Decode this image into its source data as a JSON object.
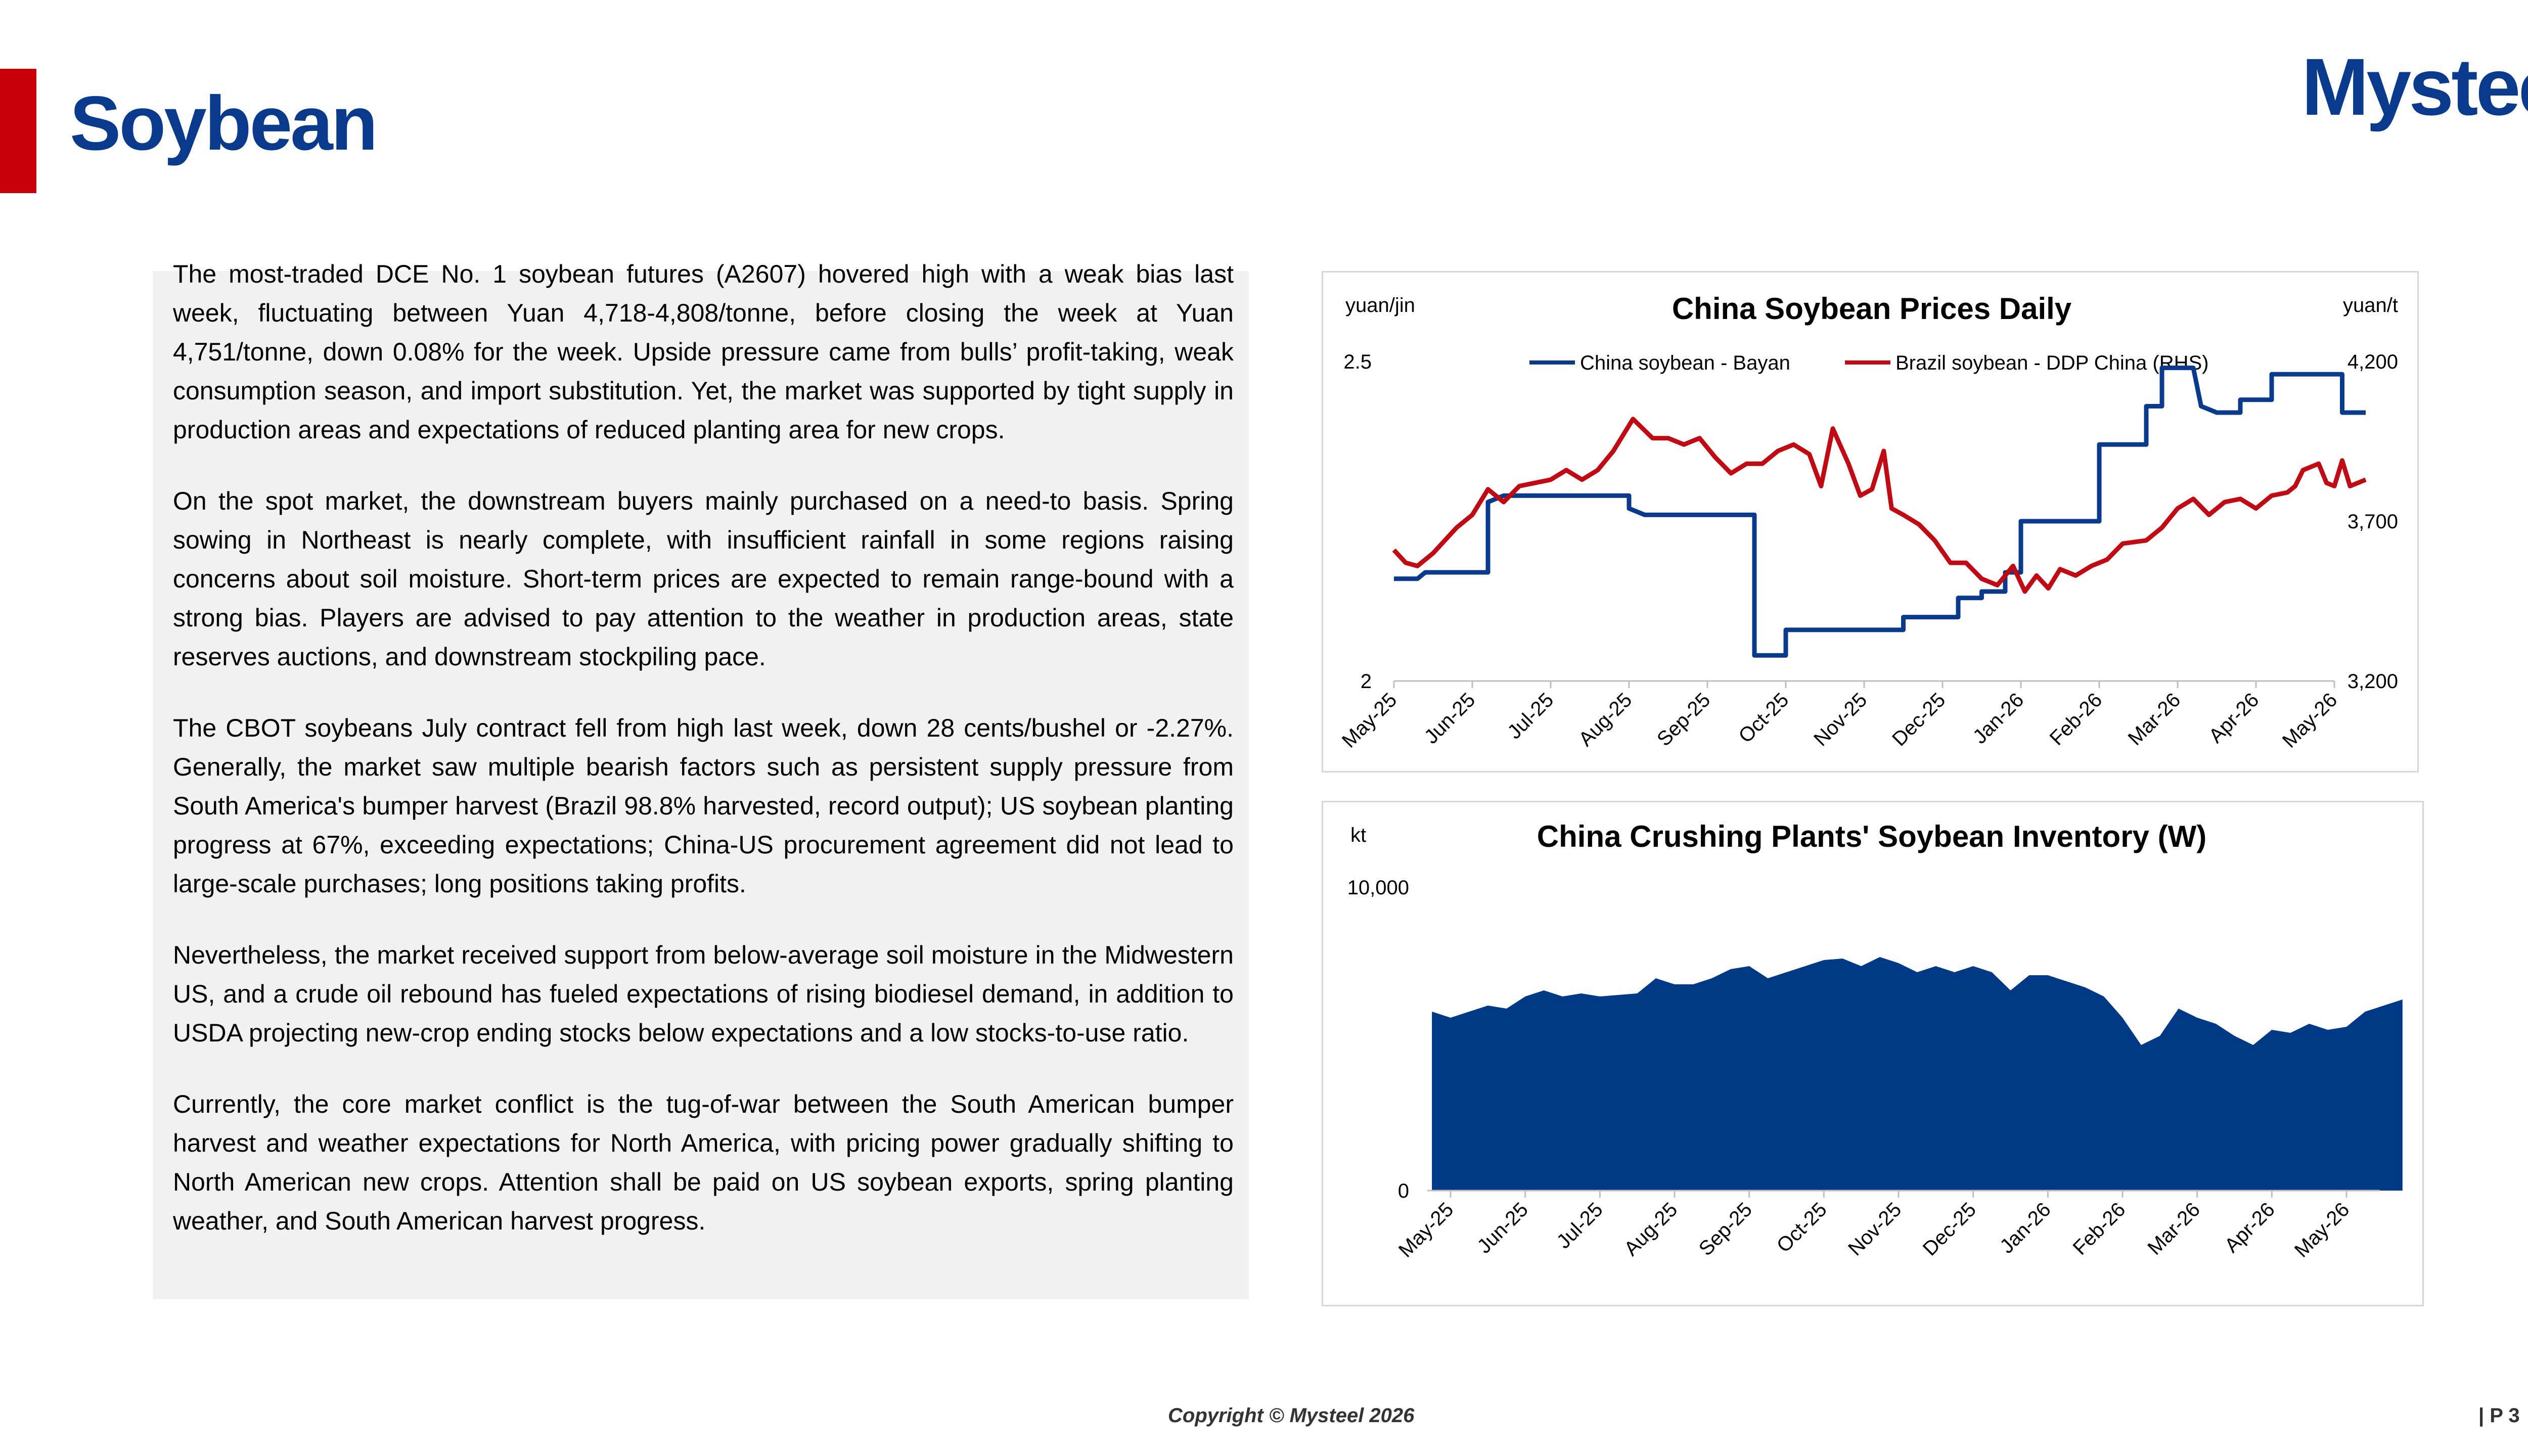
{
  "header": {
    "title": "Soybean",
    "logo": "Mysteel"
  },
  "colors": {
    "brand_blue": "#0a3a8c",
    "accent_red": "#c8000a",
    "panel_grey": "#f1f1f1",
    "area_fill": "#003a86",
    "line_blue": "#0a3a8c",
    "line_red": "#c00a14"
  },
  "text": {
    "paragraphs": [
      "The most-traded DCE No. 1 soybean futures (A2607) hovered high with a weak bias last week, fluctuating between Yuan 4,718-4,808/tonne, before closing the week at Yuan 4,751/tonne, down 0.08% for the week. Upside pressure came from bulls’ profit-taking, weak consumption season, and import substitution. Yet, the market was supported by tight supply in production areas and expectations of reduced planting area for new crops.",
      "On the spot market, the downstream buyers mainly purchased on a need-to basis. Spring sowing in Northeast is nearly complete, with insufficient rainfall in some regions raising concerns about soil moisture. Short-term prices are expected to remain range-bound with a strong bias. Players are advised to pay attention to the weather in production areas, state reserves auctions, and downstream stockpiling pace.",
      "The CBOT soybeans July contract fell from high last week, down 28 cents/bushel or -2.27%. Generally, the market saw multiple bearish factors such as persistent supply pressure from South America's bumper harvest (Brazil 98.8% harvested, record output); US soybean planting progress at 67%, exceeding expectations; China-US procurement agreement did not lead to large-scale purchases; long positions taking profits.",
      "Nevertheless, the market received support from below-average soil moisture in the Midwestern US, and a crude oil rebound has fueled expectations of rising biodiesel demand, in addition to USDA projecting new-crop ending stocks below expectations and a low stocks-to-use ratio.",
      "Currently, the core market conflict is the tug-of-war between the South American bumper harvest and weather expectations for North America, with pricing power gradually shifting to North American new crops. Attention shall be paid on US soybean exports, spring planting weather, and South American harvest progress."
    ]
  },
  "chart_data": [
    {
      "type": "line",
      "title": "China Soybean Prices Daily",
      "ylabel": "yuan/jin",
      "ylabel_right": "yuan/t",
      "ylim": [
        2,
        2.5
      ],
      "yticks": [
        "2.5",
        "2"
      ],
      "ylim_right": [
        3200,
        4200
      ],
      "yticks_right": [
        "4,200",
        "3,700",
        "3,200"
      ],
      "categories": [
        "May-25",
        "Jun-25",
        "Jul-25",
        "Aug-25",
        "Sep-25",
        "Oct-25",
        "Nov-25",
        "Dec-25",
        "Jan-26",
        "Feb-26",
        "Mar-26",
        "Apr-26",
        "May-26"
      ],
      "legend_position": "top",
      "series": [
        {
          "name": "China soybean - Bayan",
          "axis": "left",
          "color": "#0a3a8c",
          "points": [
            [
              0,
              2.16
            ],
            [
              0.3,
              2.16
            ],
            [
              0.4,
              2.17
            ],
            [
              1.2,
              2.17
            ],
            [
              1.2,
              2.28
            ],
            [
              1.4,
              2.29
            ],
            [
              2.4,
              2.29
            ],
            [
              3,
              2.29
            ],
            [
              3,
              2.27
            ],
            [
              3.2,
              2.26
            ],
            [
              4.6,
              2.26
            ],
            [
              4.6,
              2.04
            ],
            [
              5,
              2.04
            ],
            [
              5,
              2.08
            ],
            [
              6.5,
              2.08
            ],
            [
              6.5,
              2.1
            ],
            [
              7.2,
              2.1
            ],
            [
              7.2,
              2.13
            ],
            [
              7.5,
              2.13
            ],
            [
              7.5,
              2.14
            ],
            [
              7.8,
              2.14
            ],
            [
              7.8,
              2.17
            ],
            [
              8,
              2.17
            ],
            [
              8,
              2.25
            ],
            [
              9,
              2.25
            ],
            [
              9,
              2.37
            ],
            [
              9.6,
              2.37
            ],
            [
              9.6,
              2.43
            ],
            [
              9.8,
              2.43
            ],
            [
              9.8,
              2.49
            ],
            [
              10.2,
              2.49
            ],
            [
              10.3,
              2.43
            ],
            [
              10.5,
              2.42
            ],
            [
              10.8,
              2.42
            ],
            [
              10.8,
              2.44
            ],
            [
              11.2,
              2.44
            ],
            [
              11.2,
              2.48
            ],
            [
              12.1,
              2.48
            ],
            [
              12.1,
              2.42
            ],
            [
              12.4,
              2.42
            ]
          ]
        },
        {
          "name": "Brazil soybean - DDP China (RHS)",
          "axis": "right",
          "color": "#c00a14",
          "points": [
            [
              0,
              3610
            ],
            [
              0.15,
              3570
            ],
            [
              0.3,
              3560
            ],
            [
              0.5,
              3600
            ],
            [
              0.8,
              3680
            ],
            [
              1,
              3720
            ],
            [
              1.2,
              3800
            ],
            [
              1.4,
              3760
            ],
            [
              1.6,
              3810
            ],
            [
              1.8,
              3820
            ],
            [
              2,
              3830
            ],
            [
              2.2,
              3860
            ],
            [
              2.4,
              3830
            ],
            [
              2.6,
              3860
            ],
            [
              2.8,
              3920
            ],
            [
              3.05,
              4020
            ],
            [
              3.3,
              3960
            ],
            [
              3.5,
              3960
            ],
            [
              3.7,
              3940
            ],
            [
              3.9,
              3960
            ],
            [
              4.1,
              3900
            ],
            [
              4.3,
              3850
            ],
            [
              4.5,
              3880
            ],
            [
              4.7,
              3880
            ],
            [
              4.9,
              3920
            ],
            [
              5.1,
              3940
            ],
            [
              5.3,
              3910
            ],
            [
              5.45,
              3810
            ],
            [
              5.6,
              3990
            ],
            [
              5.8,
              3880
            ],
            [
              5.95,
              3780
            ],
            [
              6.1,
              3800
            ],
            [
              6.25,
              3920
            ],
            [
              6.35,
              3740
            ],
            [
              6.5,
              3720
            ],
            [
              6.7,
              3690
            ],
            [
              6.9,
              3640
            ],
            [
              7.1,
              3570
            ],
            [
              7.3,
              3570
            ],
            [
              7.5,
              3520
            ],
            [
              7.7,
              3500
            ],
            [
              7.9,
              3560
            ],
            [
              8.05,
              3480
            ],
            [
              8.2,
              3530
            ],
            [
              8.35,
              3490
            ],
            [
              8.5,
              3550
            ],
            [
              8.7,
              3530
            ],
            [
              8.9,
              3560
            ],
            [
              9.1,
              3580
            ],
            [
              9.3,
              3630
            ],
            [
              9.6,
              3640
            ],
            [
              9.8,
              3680
            ],
            [
              10,
              3740
            ],
            [
              10.2,
              3770
            ],
            [
              10.4,
              3720
            ],
            [
              10.6,
              3760
            ],
            [
              10.8,
              3770
            ],
            [
              11,
              3740
            ],
            [
              11.2,
              3780
            ],
            [
              11.4,
              3790
            ],
            [
              11.5,
              3810
            ],
            [
              11.6,
              3860
            ],
            [
              11.8,
              3880
            ],
            [
              11.9,
              3820
            ],
            [
              12,
              3810
            ],
            [
              12.1,
              3890
            ],
            [
              12.2,
              3810
            ],
            [
              12.4,
              3830
            ]
          ]
        }
      ]
    },
    {
      "type": "area",
      "title": "China Crushing Plants' Soybean Inventory (W)",
      "ylabel": "kt",
      "ylim": [
        0,
        10000
      ],
      "yticks": [
        "10,000",
        "0"
      ],
      "categories": [
        "May-25",
        "Jun-25",
        "Jul-25",
        "Aug-25",
        "Sep-25",
        "Oct-25",
        "Nov-25",
        "Dec-25",
        "Jan-26",
        "Feb-26",
        "Mar-26",
        "Apr-26",
        "May-26"
      ],
      "series": [
        {
          "name": "",
          "color": "#003a86",
          "points": [
            [
              -0.25,
              5900
            ],
            [
              0,
              5700
            ],
            [
              0.25,
              5900
            ],
            [
              0.5,
              6100
            ],
            [
              0.75,
              6000
            ],
            [
              1,
              6400
            ],
            [
              1.25,
              6600
            ],
            [
              1.5,
              6400
            ],
            [
              1.75,
              6500
            ],
            [
              2,
              6400
            ],
            [
              2.25,
              6450
            ],
            [
              2.5,
              6500
            ],
            [
              2.75,
              7000
            ],
            [
              3,
              6800
            ],
            [
              3.25,
              6800
            ],
            [
              3.5,
              7000
            ],
            [
              3.75,
              7300
            ],
            [
              4,
              7400
            ],
            [
              4.25,
              7000
            ],
            [
              4.5,
              7200
            ],
            [
              4.75,
              7400
            ],
            [
              5,
              7600
            ],
            [
              5.25,
              7650
            ],
            [
              5.5,
              7400
            ],
            [
              5.75,
              7700
            ],
            [
              6,
              7500
            ],
            [
              6.25,
              7200
            ],
            [
              6.5,
              7400
            ],
            [
              6.75,
              7200
            ],
            [
              7,
              7400
            ],
            [
              7.25,
              7200
            ],
            [
              7.5,
              6600
            ],
            [
              7.75,
              7100
            ],
            [
              8,
              7100
            ],
            [
              8.25,
              6900
            ],
            [
              8.5,
              6700
            ],
            [
              8.75,
              6400
            ],
            [
              9,
              5700
            ],
            [
              9.25,
              4800
            ],
            [
              9.5,
              5100
            ],
            [
              9.75,
              6000
            ],
            [
              10,
              5700
            ],
            [
              10.25,
              5500
            ],
            [
              10.5,
              5100
            ],
            [
              10.75,
              4800
            ],
            [
              11,
              5300
            ],
            [
              11.25,
              5200
            ],
            [
              11.5,
              5500
            ],
            [
              11.75,
              5300
            ],
            [
              12,
              5400
            ],
            [
              12.25,
              5900
            ],
            [
              12.5,
              6100
            ],
            [
              12.75,
              6300
            ]
          ]
        }
      ]
    }
  ],
  "footer": {
    "copyright": "Copyright © Mysteel 2026",
    "page": "| P 3"
  }
}
